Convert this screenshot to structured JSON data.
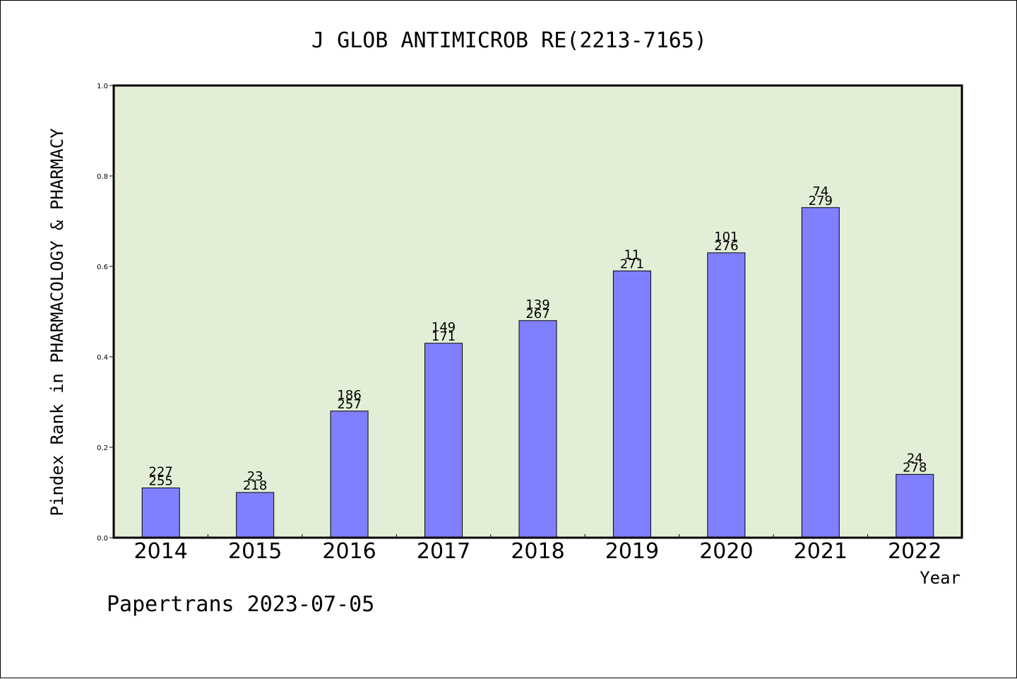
{
  "chart_data": {
    "type": "bar",
    "title": "J GLOB ANTIMICROB RE(2213-7165)",
    "xlabel": "Year",
    "ylabel": "Pindex Rank in PHARMACOLOGY & PHARMACY",
    "ylim": [
      0,
      1
    ],
    "yticks": [
      "0.0",
      "0.2",
      "0.4",
      "0.6",
      "0.8",
      "1.0"
    ],
    "categories": [
      "2014",
      "2015",
      "2016",
      "2017",
      "2018",
      "2019",
      "2020",
      "2021",
      "2022"
    ],
    "values": [
      0.11,
      0.1,
      0.28,
      0.43,
      0.48,
      0.59,
      0.63,
      0.73,
      0.14
    ],
    "rank_labels": [
      "227",
      "23",
      "186",
      "149",
      "139",
      "11",
      "101",
      "74",
      "24"
    ],
    "total_labels": [
      "255",
      "218",
      "257",
      "171",
      "267",
      "271",
      "276",
      "279",
      "278"
    ],
    "grid": false,
    "bar_color": "#8080ff",
    "plot_background": "#e2efd6"
  },
  "footer": "Papertrans 2023-07-05"
}
